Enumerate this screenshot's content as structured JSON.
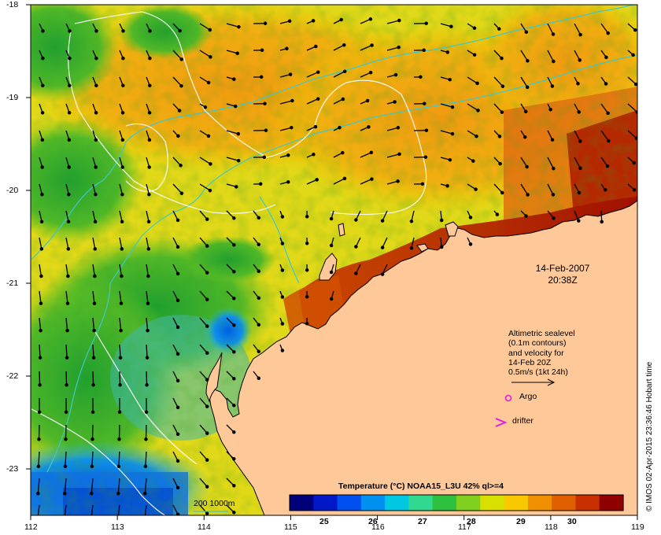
{
  "map": {
    "date_lines": [
      "14-Feb-2007",
      "20:38Z"
    ],
    "altimetry_note": [
      "Altimetric sealevel",
      "(0.1m contours)",
      "and velocity for",
      "14-Feb 20Z",
      "0.5m/s (1kt 24h)"
    ],
    "legend": {
      "argo": "Argo",
      "drifter": "drifter",
      "depth_contours": "200  1000m"
    },
    "colorbar": {
      "title": "Temperature (°C) NOAA15_L3U 42% ql>=4",
      "ticks": [
        "25",
        "26",
        "27",
        "28",
        "29",
        "30"
      ],
      "colors": [
        "#00007a",
        "#0018c8",
        "#0050f0",
        "#0090f0",
        "#00c8e0",
        "#30d890",
        "#30c040",
        "#80d020",
        "#d8e000",
        "#f8c800",
        "#f09000",
        "#e06000",
        "#c83000",
        "#900000"
      ]
    },
    "credit": "© IMOS 02-Apr-2015 23:36:46 Hobart time",
    "axes": {
      "lat_labels": [
        "-18",
        "-19",
        "-20",
        "-21",
        "-22",
        "-23"
      ],
      "lon_labels": [
        "112",
        "113",
        "114",
        "115",
        "116",
        "117",
        "118",
        "119"
      ]
    },
    "colors": {
      "land": "#ffc898",
      "ocean_cool": "#30a020",
      "ocean_warm": "#f8b000",
      "coast_hot": "#a01000",
      "shelf_contour": "#40c8c8",
      "sealevel_contour": "#ffffff",
      "arrow": "#000000",
      "marker": "#e020e0"
    }
  }
}
